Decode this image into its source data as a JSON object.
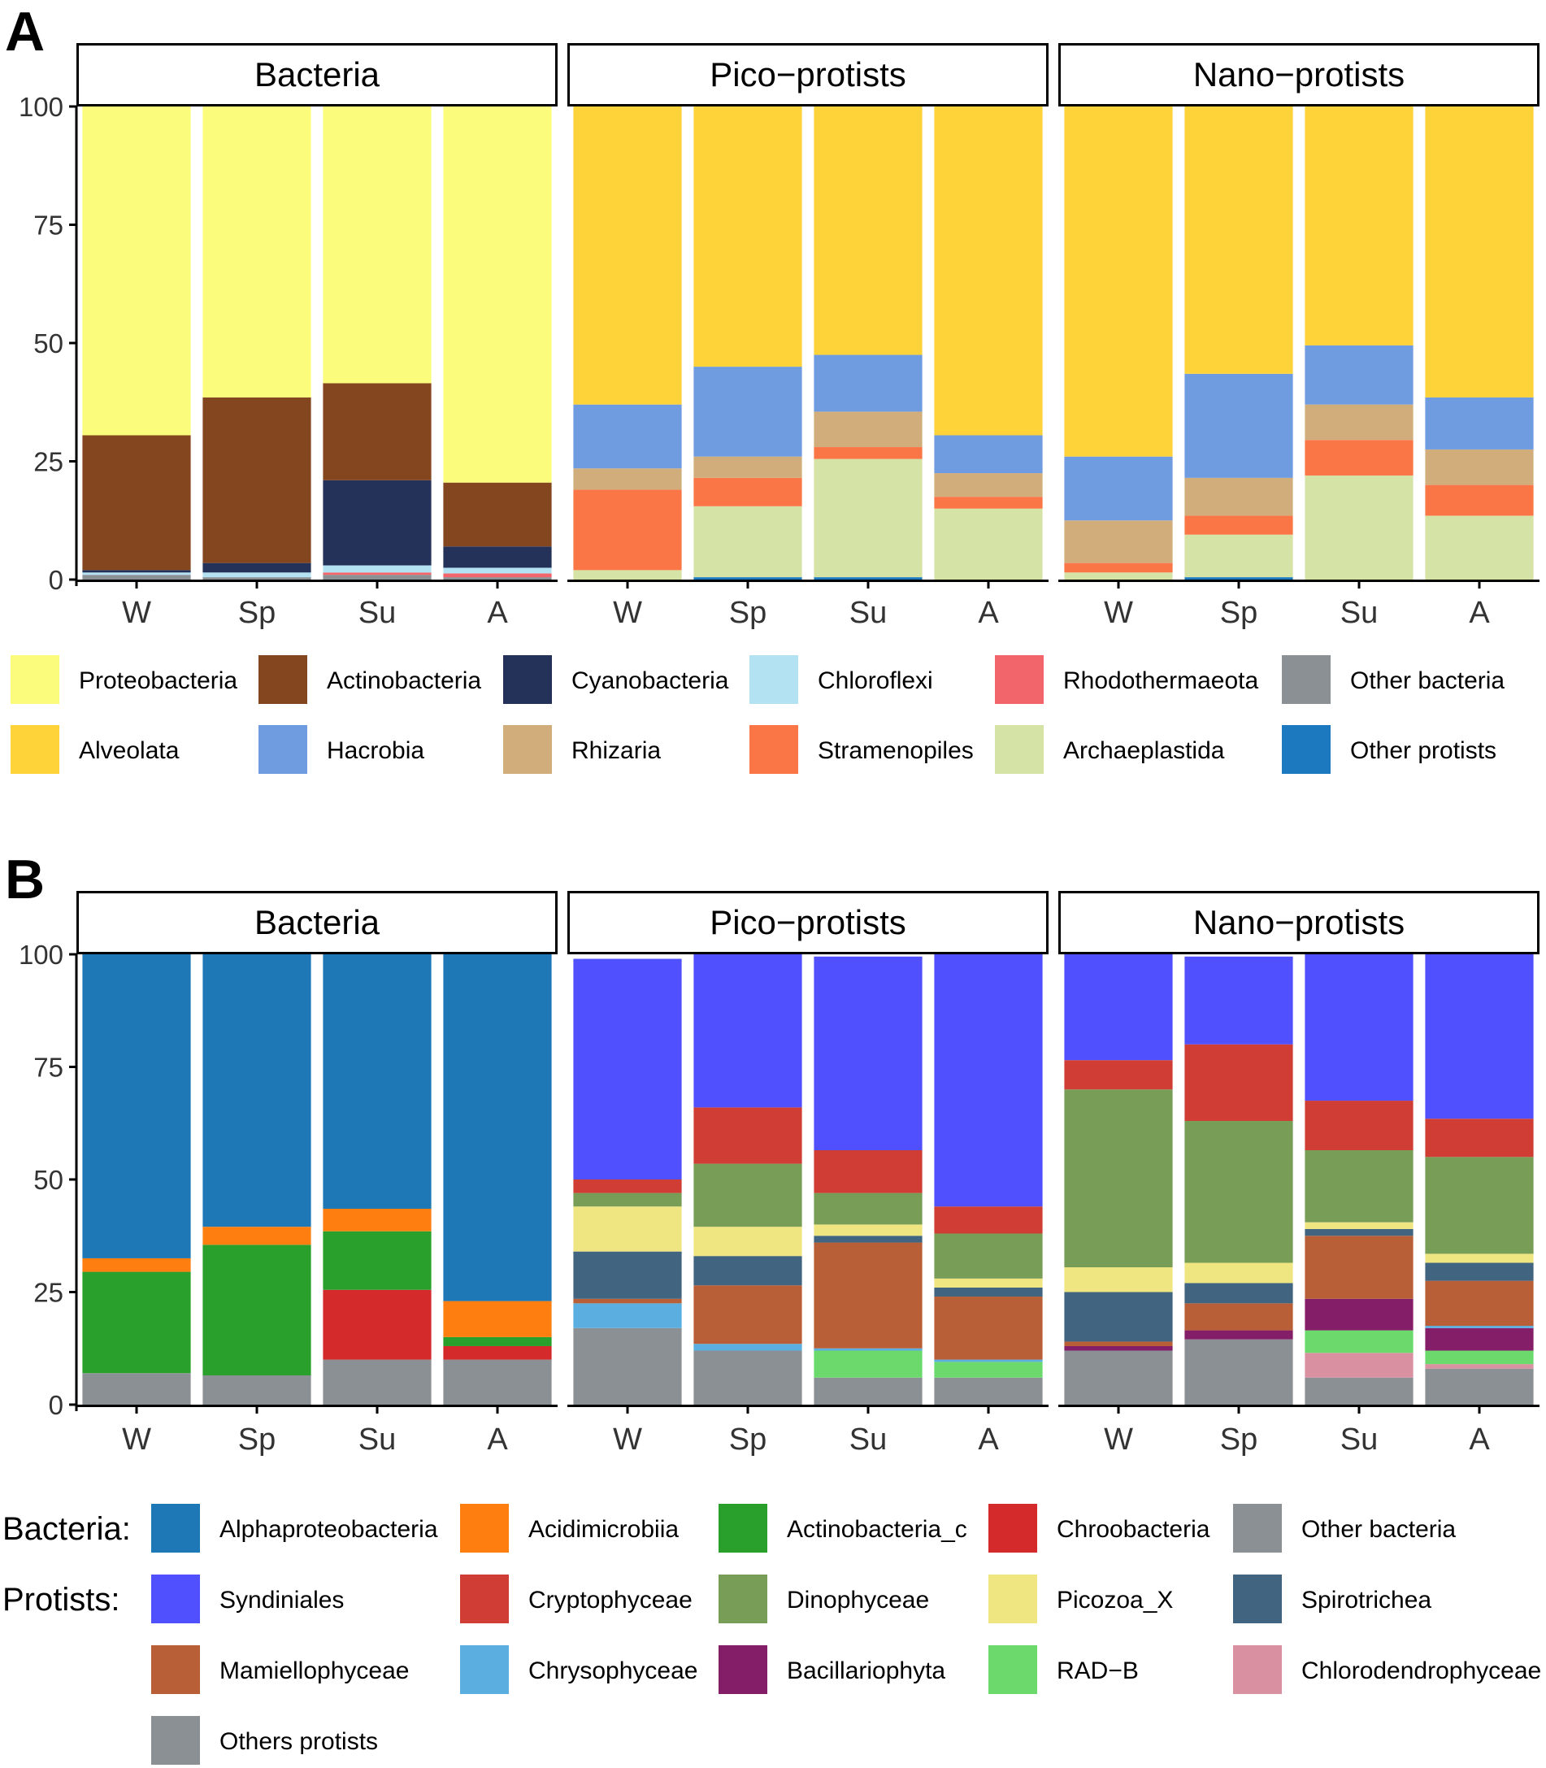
{
  "chart_data": [
    {
      "panel_label": "A",
      "type": "bar",
      "stacked": true,
      "ylim": [
        0,
        100
      ],
      "yticks": [
        "0",
        "25",
        "50",
        "75",
        "100"
      ],
      "categories": [
        "W",
        "Sp",
        "Su",
        "A"
      ],
      "facets": [
        {
          "title": "Bacteria",
          "series": [
            {
              "name": "Other bacteria",
              "color": "#8b9095",
              "values": [
                1,
                0.5,
                1,
                0.5
              ]
            },
            {
              "name": "Rhodothermaeota",
              "color": "#f2666b",
              "values": [
                0,
                0,
                0.5,
                0.8
              ]
            },
            {
              "name": "Chloroflexi",
              "color": "#b3e2f3",
              "values": [
                0.5,
                1,
                1.5,
                1.2
              ]
            },
            {
              "name": "Cyanobacteria",
              "color": "#243159",
              "values": [
                0.5,
                2,
                18,
                4.5
              ]
            },
            {
              "name": "Actinobacteria",
              "color": "#83461f",
              "values": [
                28.5,
                35,
                20.5,
                13.5
              ]
            },
            {
              "name": "Proteobacteria",
              "color": "#fbfc7c",
              "values": [
                69.5,
                61.5,
                58.5,
                79.5
              ]
            }
          ]
        },
        {
          "title": "Pico−protists",
          "series": [
            {
              "name": "Other protists",
              "color": "#1c79c0",
              "values": [
                0,
                0.5,
                0.5,
                0
              ]
            },
            {
              "name": "Archaeplastida",
              "color": "#d5e4a6",
              "values": [
                2,
                15,
                25,
                15
              ]
            },
            {
              "name": "Stramenopiles",
              "color": "#fb7647",
              "values": [
                17,
                6,
                2.5,
                2.5
              ]
            },
            {
              "name": "Rhizaria",
              "color": "#d2ad7c",
              "values": [
                4.5,
                4.5,
                7.5,
                5
              ]
            },
            {
              "name": "Hacrobia",
              "color": "#6f9be1",
              "values": [
                13.5,
                19,
                12,
                8
              ]
            },
            {
              "name": "Alveolata",
              "color": "#fed339",
              "values": [
                63,
                55,
                52.5,
                69.5
              ]
            }
          ]
        },
        {
          "title": "Nano−protists",
          "series": [
            {
              "name": "Other protists",
              "color": "#1c79c0",
              "values": [
                0,
                0.5,
                0,
                0
              ]
            },
            {
              "name": "Archaeplastida",
              "color": "#d5e4a6",
              "values": [
                1.5,
                9,
                22,
                13.5
              ]
            },
            {
              "name": "Stramenopiles",
              "color": "#fb7647",
              "values": [
                2,
                4,
                7.5,
                6.5
              ]
            },
            {
              "name": "Rhizaria",
              "color": "#d2ad7c",
              "values": [
                9,
                8,
                7.5,
                7.5
              ]
            },
            {
              "name": "Hacrobia",
              "color": "#6f9be1",
              "values": [
                13.5,
                22,
                12.5,
                11
              ]
            },
            {
              "name": "Alveolata",
              "color": "#fed339",
              "values": [
                74,
                56.5,
                50.5,
                61.5
              ]
            }
          ]
        }
      ],
      "legend": {
        "placement": "bottom",
        "rows": [
          [
            {
              "name": "Proteobacteria",
              "color": "#fbfc7c"
            },
            {
              "name": "Actinobacteria",
              "color": "#83461f"
            },
            {
              "name": "Cyanobacteria",
              "color": "#243159"
            },
            {
              "name": "Chloroflexi",
              "color": "#b3e2f3"
            },
            {
              "name": "Rhodothermaeota",
              "color": "#f2666b"
            },
            {
              "name": "Other bacteria",
              "color": "#8b9095"
            }
          ],
          [
            {
              "name": "Alveolata",
              "color": "#fed339"
            },
            {
              "name": "Hacrobia",
              "color": "#6f9be1"
            },
            {
              "name": "Rhizaria",
              "color": "#d2ad7c"
            },
            {
              "name": "Stramenopiles",
              "color": "#fb7647"
            },
            {
              "name": "Archaeplastida",
              "color": "#d5e4a6"
            },
            {
              "name": "Other protists",
              "color": "#1c79c0"
            }
          ]
        ]
      }
    },
    {
      "panel_label": "B",
      "type": "bar",
      "stacked": true,
      "ylim": [
        0,
        100
      ],
      "yticks": [
        "0",
        "25",
        "50",
        "75",
        "100"
      ],
      "categories": [
        "W",
        "Sp",
        "Su",
        "A"
      ],
      "facets": [
        {
          "title": "Bacteria",
          "series": [
            {
              "name": "Other bacteria",
              "color": "#8b9095",
              "values": [
                7,
                6.5,
                10,
                10
              ]
            },
            {
              "name": "Chroobacteria",
              "color": "#d42a2b",
              "values": [
                0,
                0,
                15.5,
                3
              ]
            },
            {
              "name": "Actinobacteria_c",
              "color": "#2aa02c",
              "values": [
                22.5,
                29,
                13,
                2
              ]
            },
            {
              "name": "Acidimicrobiia",
              "color": "#fe7f0f",
              "values": [
                3,
                4,
                5,
                8
              ]
            },
            {
              "name": "Alphaproteobacteria",
              "color": "#1e78b5",
              "values": [
                67.5,
                60.5,
                56.5,
                77
              ]
            }
          ]
        },
        {
          "title": "Pico−protists",
          "series": [
            {
              "name": "Others protists",
              "color": "#8b9095",
              "values": [
                17,
                12,
                6,
                6
              ]
            },
            {
              "name": "Chlorodendrophyceae",
              "color": "#d991a2",
              "values": [
                0,
                0,
                0,
                0
              ]
            },
            {
              "name": "RAD−B",
              "color": "#6bd96c",
              "values": [
                0,
                0,
                6,
                3.5
              ]
            },
            {
              "name": "Bacillariophyta",
              "color": "#841e68",
              "values": [
                0,
                0,
                0,
                0
              ]
            },
            {
              "name": "Chrysophyceae",
              "color": "#5aafe0",
              "values": [
                5.5,
                1.5,
                0.5,
                0.5
              ]
            },
            {
              "name": "Mamiellophyceae",
              "color": "#b85f37",
              "values": [
                1,
                13,
                23.5,
                14
              ]
            },
            {
              "name": "Spirotrichea",
              "color": "#416480",
              "values": [
                10.5,
                6.5,
                1.5,
                2
              ]
            },
            {
              "name": "Picozoa_X",
              "color": "#efe682",
              "values": [
                10,
                6.5,
                2.5,
                2
              ]
            },
            {
              "name": "Dinophyceae",
              "color": "#789d57",
              "values": [
                3,
                14,
                7,
                10
              ]
            },
            {
              "name": "Cryptophyceae",
              "color": "#d03d34",
              "values": [
                3,
                12.5,
                9.5,
                6
              ]
            },
            {
              "name": "Syndiniales",
              "color": "#5050fe",
              "values": [
                49,
                34,
                43,
                56
              ]
            }
          ]
        },
        {
          "title": "Nano−protists",
          "series": [
            {
              "name": "Others protists",
              "color": "#8b9095",
              "values": [
                12,
                14.5,
                6,
                8
              ]
            },
            {
              "name": "Chlorodendrophyceae",
              "color": "#d991a2",
              "values": [
                0,
                0,
                5.5,
                1
              ]
            },
            {
              "name": "RAD−B",
              "color": "#6bd96c",
              "values": [
                0,
                0,
                5,
                3
              ]
            },
            {
              "name": "Bacillariophyta",
              "color": "#841e68",
              "values": [
                1,
                2,
                7,
                5
              ]
            },
            {
              "name": "Chrysophyceae",
              "color": "#5aafe0",
              "values": [
                0,
                0,
                0,
                0.5
              ]
            },
            {
              "name": "Mamiellophyceae",
              "color": "#b85f37",
              "values": [
                1,
                6,
                14,
                10
              ]
            },
            {
              "name": "Spirotrichea",
              "color": "#416480",
              "values": [
                11,
                4.5,
                1.5,
                4
              ]
            },
            {
              "name": "Picozoa_X",
              "color": "#efe682",
              "values": [
                5.5,
                4.5,
                1.5,
                2
              ]
            },
            {
              "name": "Dinophyceae",
              "color": "#789d57",
              "values": [
                39.5,
                31.5,
                16,
                21.5
              ]
            },
            {
              "name": "Cryptophyceae",
              "color": "#d03d34",
              "values": [
                6.5,
                17,
                11,
                8.5
              ]
            },
            {
              "name": "Syndiniales",
              "color": "#5050fe",
              "values": [
                23.5,
                19.5,
                32.5,
                36.5
              ]
            }
          ]
        }
      ],
      "legend": {
        "placement": "bottom",
        "group_labels": [
          "Bacteria:",
          "Protists:"
        ],
        "rows": [
          [
            {
              "name": "Alphaproteobacteria",
              "color": "#1e78b5"
            },
            {
              "name": "Acidimicrobiia",
              "color": "#fe7f0f"
            },
            {
              "name": "Actinobacteria_c",
              "color": "#2aa02c"
            },
            {
              "name": "Chroobacteria",
              "color": "#d42a2b"
            },
            {
              "name": "Other bacteria",
              "color": "#8b9095"
            }
          ],
          [
            {
              "name": "Syndiniales",
              "color": "#5050fe"
            },
            {
              "name": "Cryptophyceae",
              "color": "#d03d34"
            },
            {
              "name": "Dinophyceae",
              "color": "#789d57"
            },
            {
              "name": "Picozoa_X",
              "color": "#efe682"
            },
            {
              "name": "Spirotrichea",
              "color": "#416480"
            }
          ],
          [
            {
              "name": "Mamiellophyceae",
              "color": "#b85f37"
            },
            {
              "name": "Chrysophyceae",
              "color": "#5aafe0"
            },
            {
              "name": "Bacillariophyta",
              "color": "#841e68"
            },
            {
              "name": "RAD−B",
              "color": "#6bd96c"
            },
            {
              "name": "Chlorodendrophyceae",
              "color": "#d991a2"
            }
          ],
          [
            {
              "name": "Others protists",
              "color": "#8b9095"
            }
          ]
        ]
      }
    }
  ]
}
